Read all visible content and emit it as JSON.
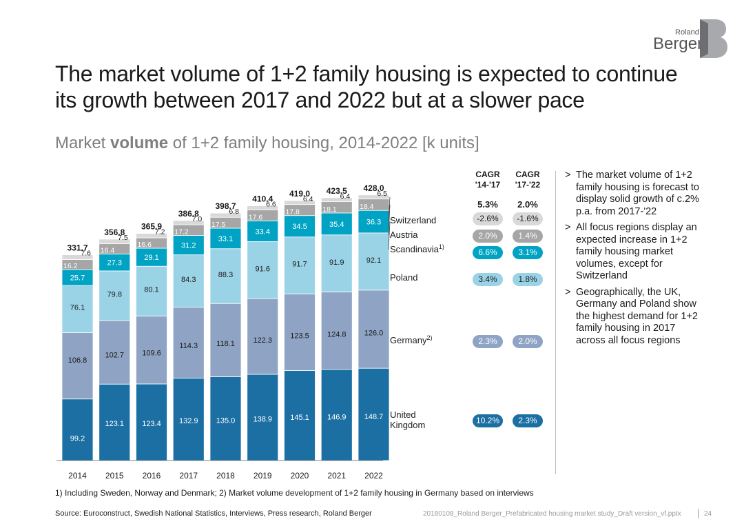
{
  "logo": {
    "line1": "Roland",
    "line2": "Berger"
  },
  "title": "The market volume of 1+2 family housing is expected to continue its growth between 2017 and 2022 but at a slower pace",
  "subtitle": {
    "pre": "Market ",
    "bold": "volume",
    "post": " of 1+2 family housing, 2014-2022 [k units]"
  },
  "chart_data": {
    "type": "bar",
    "stacked": true,
    "title": "Market volume of 1+2 family housing, 2014-2022 [k units]",
    "categories": [
      "2014",
      "2015",
      "2016",
      "2017",
      "2018",
      "2019",
      "2020",
      "2021",
      "2022"
    ],
    "series": [
      {
        "name": "United Kingdom",
        "label_lines": [
          "United",
          "Kingdom"
        ],
        "values": [
          99.2,
          123.1,
          123.4,
          132.9,
          135.0,
          138.9,
          145.1,
          146.9,
          148.7
        ],
        "color": "#1c6fa3",
        "text_color": "#ffffff"
      },
      {
        "name": "Germany",
        "label_lines": [
          "Germany"
        ],
        "sup": "2)",
        "values": [
          106.8,
          102.7,
          109.6,
          114.3,
          118.1,
          122.3,
          123.5,
          124.8,
          126.0
        ],
        "color": "#8fa4c4",
        "text_color": "#1a1a1a"
      },
      {
        "name": "Poland",
        "label_lines": [
          "Poland"
        ],
        "values": [
          76.1,
          79.8,
          80.1,
          84.3,
          88.3,
          91.6,
          91.7,
          91.9,
          92.1
        ],
        "color": "#9ad3e6",
        "text_color": "#1a1a1a"
      },
      {
        "name": "Scandinavia",
        "label_lines": [
          "Scandinavia"
        ],
        "sup": "1)",
        "values": [
          25.7,
          27.3,
          29.1,
          31.2,
          33.1,
          33.4,
          34.5,
          35.4,
          36.3
        ],
        "color": "#00a3c4",
        "text_color": "#ffffff"
      },
      {
        "name": "Austria",
        "label_lines": [
          "Austria"
        ],
        "values": [
          16.2,
          16.4,
          16.6,
          17.2,
          17.5,
          17.6,
          17.8,
          18.1,
          18.4
        ],
        "color": "#a6a6a6",
        "text_color": "#ffffff"
      },
      {
        "name": "Switzerland",
        "label_lines": [
          "Switzerland"
        ],
        "values": [
          7.6,
          7.5,
          7.2,
          7.0,
          6.8,
          6.6,
          6.4,
          6.4,
          6.5
        ],
        "color": "#d9d9d9",
        "text_color": "#1a1a1a"
      }
    ],
    "totals": [
      "331.7",
      "356.8",
      "365.9",
      "386.8",
      "398.7",
      "410.4",
      "419.0",
      "423.5",
      "428.0"
    ],
    "legend": "right, aligned to stacks",
    "xlabel": "",
    "ylabel": "k units",
    "ylim": [
      0,
      440
    ],
    "grid": false
  },
  "cagr": {
    "header_1": [
      "CAGR",
      "'14-'17"
    ],
    "header_2": [
      "CAGR",
      "'17-'22"
    ],
    "total": [
      "5.3%",
      "2.0%"
    ],
    "rows": [
      {
        "series": "Switzerland",
        "v1": "-2.6%",
        "v2": "-1.6%",
        "style": "grey"
      },
      {
        "series": "Austria",
        "v1": "2.0%",
        "v2": "1.4%",
        "style": "dgrey"
      },
      {
        "series": "Scandinavia",
        "v1": "6.6%",
        "v2": "3.1%",
        "style": "teal"
      },
      {
        "series": "Poland",
        "v1": "3.4%",
        "v2": "1.8%",
        "style": "lblue"
      },
      {
        "series": "Germany",
        "v1": "2.3%",
        "v2": "2.0%",
        "style": "slate"
      },
      {
        "series": "United Kingdom",
        "v1": "10.2%",
        "v2": "2.3%",
        "style": "navy"
      }
    ]
  },
  "bullets": [
    "The market volume of 1+2 family housing is forecast to display solid growth of c.2% p.a. from 2017-'22",
    "All focus regions display an expected increase in 1+2 family housing market volumes, except for Switzerland",
    "Geographically, the UK, Germany and Poland show the highest demand for 1+2 family housing in 2017 across all focus regions"
  ],
  "bullet_mark": ">",
  "footnote": "1) Including Sweden, Norway and Denmark; 2) Market volume development of 1+2 family housing in Germany based on interviews",
  "source": "Source: Euroconstruct, Swedish National Statistics, Interviews, Press research, Roland Berger",
  "file_ref": "20180108_Roland Berger_Prefabricated housing market study_Draft version_vf.pptx",
  "page_number": "24"
}
